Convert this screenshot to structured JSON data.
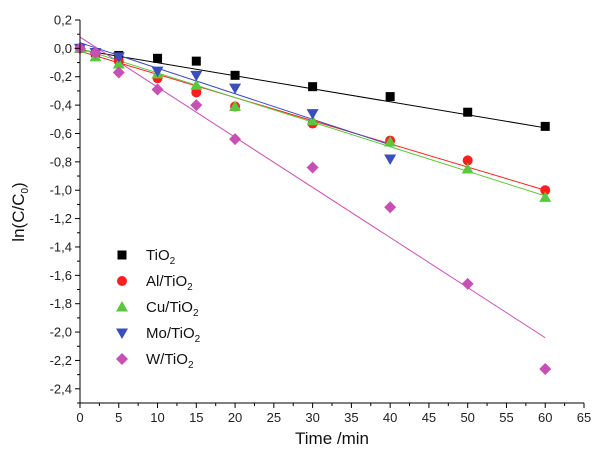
{
  "chart_data": {
    "type": "scatter",
    "xlabel": "Time /min",
    "ylabel": {
      "main": "ln(C/C",
      "sub": "0",
      "close": ")"
    },
    "xlim": [
      0,
      65
    ],
    "ylim": [
      -2.5,
      0.2
    ],
    "xticks": [
      "0",
      "5",
      "10",
      "15",
      "20",
      "25",
      "30",
      "35",
      "40",
      "45",
      "50",
      "55",
      "60",
      "65"
    ],
    "yticks": [
      "0,2",
      "0,0",
      "-0,2",
      "-0,4",
      "-0,6",
      "-0,8",
      "-1,0",
      "-1,2",
      "-1,4",
      "-1,6",
      "-1,8",
      "-2,0",
      "-2,2",
      "-2,4"
    ],
    "legend_position": "bottom-left",
    "series": [
      {
        "name": {
          "pre": "TiO",
          "sub": "2",
          "post": ""
        },
        "marker": "square",
        "color": "#000000",
        "x": [
          0,
          2,
          5,
          10,
          15,
          20,
          30,
          40,
          50,
          60
        ],
        "y": [
          0.0,
          -0.03,
          -0.05,
          -0.07,
          -0.09,
          -0.19,
          -0.27,
          -0.34,
          -0.45,
          -0.55
        ],
        "fit": {
          "x": [
            0,
            60
          ],
          "y": [
            -0.01,
            -0.56
          ]
        }
      },
      {
        "name": {
          "pre": "Al/TiO",
          "sub": "2",
          "post": ""
        },
        "marker": "circle",
        "color": "#ff1e1e",
        "x": [
          0,
          2,
          5,
          10,
          15,
          20,
          30,
          40,
          50,
          60
        ],
        "y": [
          0.0,
          -0.04,
          -0.09,
          -0.21,
          -0.31,
          -0.41,
          -0.53,
          -0.65,
          -0.79,
          -1.0
        ],
        "fit": {
          "x": [
            0,
            60
          ],
          "y": [
            -0.02,
            -1.0
          ]
        }
      },
      {
        "name": {
          "pre": "Cu/TiO",
          "sub": "2",
          "post": ""
        },
        "marker": "triangle-up",
        "color": "#5ac83c",
        "x": [
          0,
          2,
          5,
          10,
          15,
          20,
          30,
          40,
          50,
          60
        ],
        "y": [
          0.0,
          -0.06,
          -0.11,
          -0.18,
          -0.26,
          -0.41,
          -0.51,
          -0.66,
          -0.85,
          -1.05
        ],
        "fit": {
          "x": [
            0,
            60
          ],
          "y": [
            0.0,
            -1.04
          ]
        }
      },
      {
        "name": {
          "pre": "Mo/TiO",
          "sub": "2",
          "post": ""
        },
        "marker": "triangle-down",
        "color": "#3c4ebe",
        "x": [
          0,
          2,
          5,
          10,
          15,
          20,
          30,
          40
        ],
        "y": [
          0.0,
          -0.03,
          -0.06,
          -0.16,
          -0.19,
          -0.28,
          -0.46,
          -0.78
        ],
        "fit": {
          "x": [
            0,
            40
          ],
          "y": [
            0.04,
            -0.68
          ]
        }
      },
      {
        "name": {
          "pre": "W/TiO",
          "sub": "2",
          "post": ""
        },
        "marker": "diamond",
        "color": "#c850b4",
        "x": [
          0,
          2,
          5,
          10,
          15,
          20,
          30,
          40,
          50,
          60
        ],
        "y": [
          0.0,
          -0.03,
          -0.17,
          -0.29,
          -0.4,
          -0.64,
          -0.84,
          -1.12,
          -1.66,
          -2.26
        ],
        "fit": {
          "x": [
            0,
            60
          ],
          "y": [
            0.08,
            -2.04
          ]
        }
      }
    ]
  }
}
